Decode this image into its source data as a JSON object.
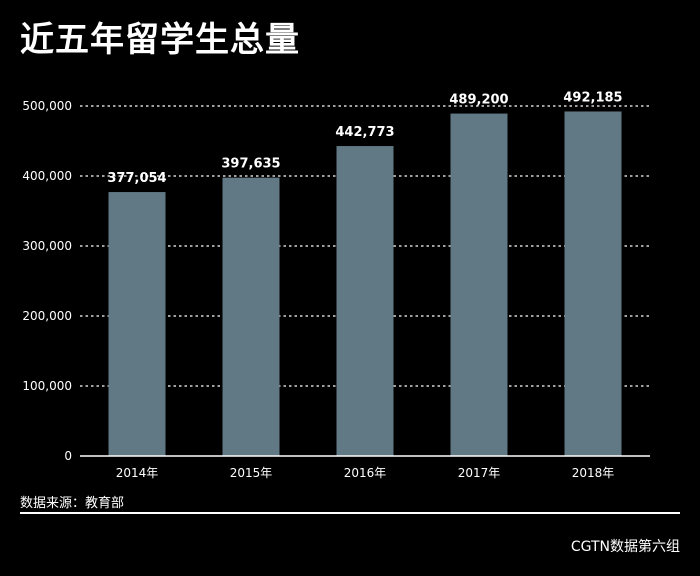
{
  "title": "近五年留学生总量",
  "source": "数据来源：教育部",
  "credit": "CGTN数据第六组",
  "colors": {
    "bar": "#617985",
    "background": "#000000",
    "text": "#ffffff"
  },
  "chart_data": {
    "type": "bar",
    "title": "近五年留学生总量",
    "xlabel": "",
    "ylabel": "",
    "categories": [
      "2014年",
      "2015年",
      "2016年",
      "2017年",
      "2018年"
    ],
    "values": [
      377054,
      397635,
      442773,
      489200,
      492185
    ],
    "value_labels": [
      "377,054",
      "397,635",
      "442,773",
      "489,200",
      "492,185"
    ],
    "ylim": [
      0,
      500000
    ],
    "yticks": [
      0,
      100000,
      200000,
      300000,
      400000,
      500000
    ],
    "ytick_labels": [
      "0",
      "100,000",
      "200,000",
      "300,000",
      "400,000",
      "500,000"
    ],
    "grid": true,
    "legend": "none"
  }
}
